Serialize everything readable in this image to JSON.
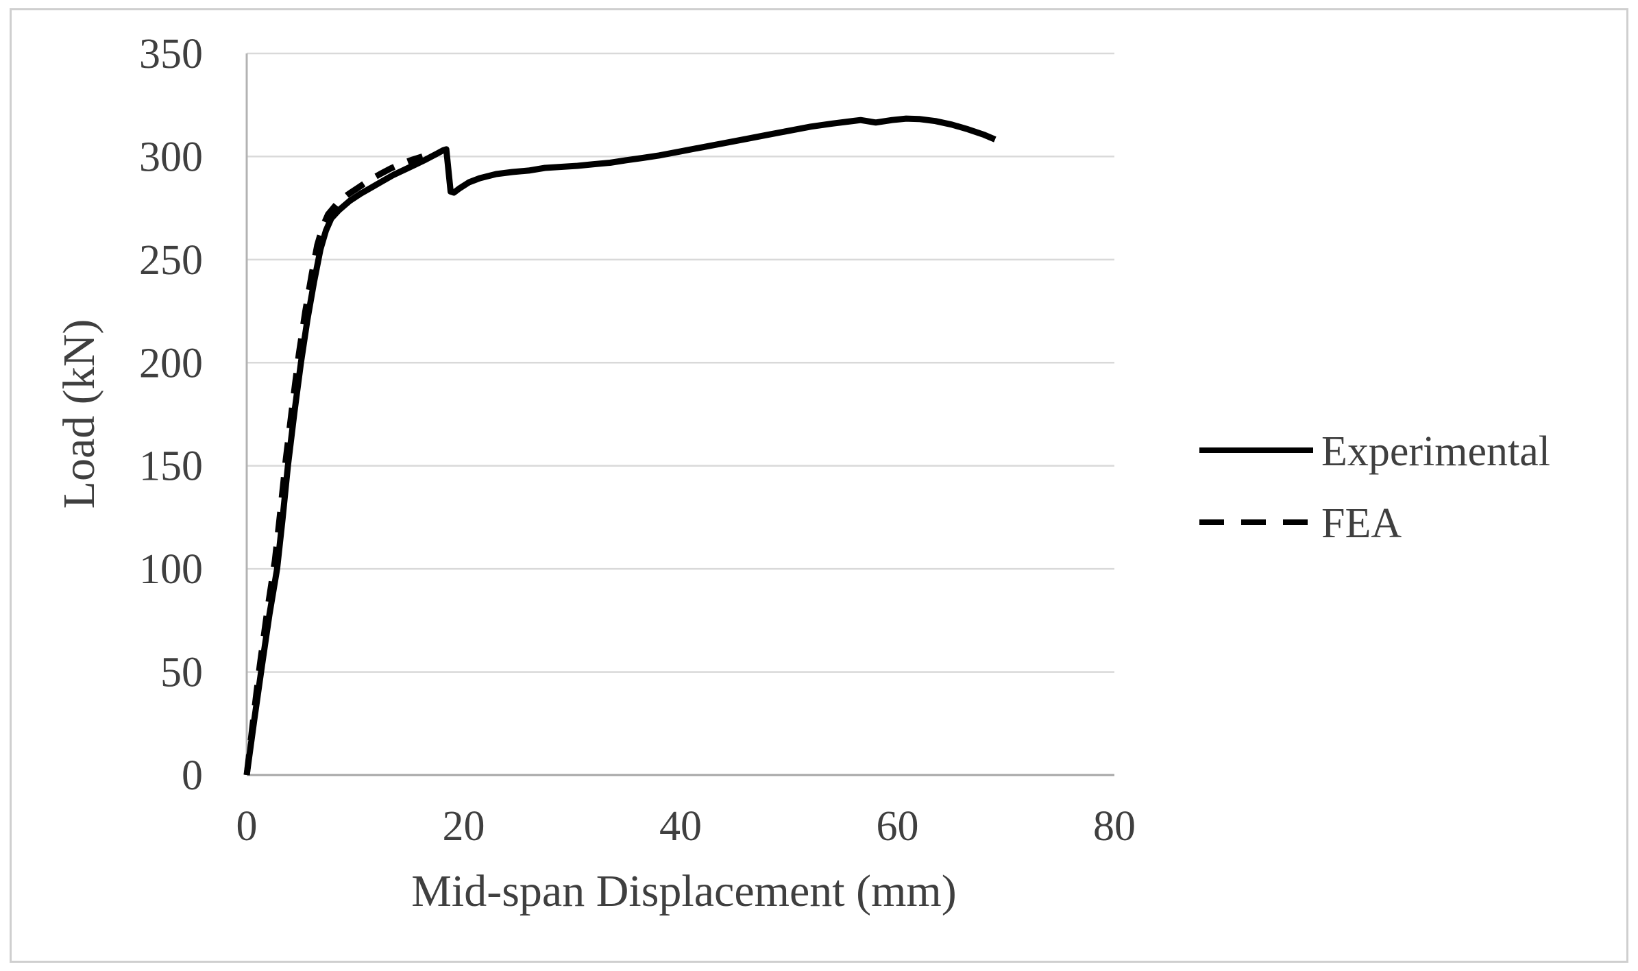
{
  "figure": {
    "background_color": "#ffffff",
    "frame_border_color": "#cfcfcf"
  },
  "chart_data": {
    "type": "line",
    "title": "",
    "xlabel": "Mid-span Displacement (mm)",
    "ylabel": "Load (kN)",
    "xlim": [
      0,
      80
    ],
    "ylim": [
      0,
      350
    ],
    "xticks": [
      0,
      20,
      40,
      60,
      80
    ],
    "yticks": [
      0,
      50,
      100,
      150,
      200,
      250,
      300,
      350
    ],
    "grid": "horizontal-only",
    "gridline_color": "#d9d9d9",
    "axis_line_color": "#a6a6a6",
    "tick_label_color": "#3f3f3f",
    "legend_position": "right-middle",
    "series": [
      {
        "name": "Experimental",
        "style": "solid",
        "color": "#000000",
        "width": 9,
        "points": [
          [
            0,
            0
          ],
          [
            0.7,
            27
          ],
          [
            1.4,
            53
          ],
          [
            2.1,
            78
          ],
          [
            2.8,
            100
          ],
          [
            3.3,
            124
          ],
          [
            3.8,
            150
          ],
          [
            4.4,
            176
          ],
          [
            5.0,
            200
          ],
          [
            5.6,
            221
          ],
          [
            6.2,
            239
          ],
          [
            6.8,
            255
          ],
          [
            7.3,
            264
          ],
          [
            7.8,
            270
          ],
          [
            8.5,
            274
          ],
          [
            9.5,
            278.5
          ],
          [
            10.5,
            282
          ],
          [
            11.5,
            285
          ],
          [
            12.5,
            288
          ],
          [
            13.5,
            291
          ],
          [
            14.5,
            293.5
          ],
          [
            15.5,
            296
          ],
          [
            16.5,
            298.5
          ],
          [
            17.4,
            301
          ],
          [
            18.1,
            303
          ],
          [
            18.4,
            303.5
          ],
          [
            18.8,
            283
          ],
          [
            19.1,
            282.5
          ],
          [
            19.6,
            284.5
          ],
          [
            20.5,
            287.5
          ],
          [
            21.5,
            289.5
          ],
          [
            23,
            291.5
          ],
          [
            24.5,
            292.5
          ],
          [
            26,
            293.2
          ],
          [
            27.5,
            294.5
          ],
          [
            29,
            295
          ],
          [
            30.5,
            295.5
          ],
          [
            32,
            296.3
          ],
          [
            33.5,
            297
          ],
          [
            35,
            298.2
          ],
          [
            36.5,
            299.3
          ],
          [
            38,
            300.5
          ],
          [
            40,
            302.5
          ],
          [
            42,
            304.5
          ],
          [
            44,
            306.5
          ],
          [
            46,
            308.5
          ],
          [
            48,
            310.5
          ],
          [
            50,
            312.5
          ],
          [
            52,
            314.5
          ],
          [
            54,
            316
          ],
          [
            56,
            317.3
          ],
          [
            56.6,
            317.7
          ],
          [
            58,
            316.5
          ],
          [
            59.5,
            317.7
          ],
          [
            60.8,
            318.4
          ],
          [
            62,
            318.2
          ],
          [
            63.5,
            317.2
          ],
          [
            65,
            315.5
          ],
          [
            66.5,
            313.2
          ],
          [
            68,
            310.5
          ],
          [
            69,
            308.3
          ]
        ]
      },
      {
        "name": "FEA",
        "style": "dashed",
        "color": "#000000",
        "width": 9,
        "dash": [
          30,
          21
        ],
        "points": [
          [
            0,
            0
          ],
          [
            0.6,
            27
          ],
          [
            1.2,
            53
          ],
          [
            1.9,
            80
          ],
          [
            2.6,
            104
          ],
          [
            3.1,
            128
          ],
          [
            3.6,
            153
          ],
          [
            4.2,
            179
          ],
          [
            4.8,
            204
          ],
          [
            5.4,
            225
          ],
          [
            6.0,
            243
          ],
          [
            6.5,
            257
          ],
          [
            7.0,
            266
          ],
          [
            7.5,
            272
          ],
          [
            8.3,
            277
          ],
          [
            9.3,
            281.5
          ],
          [
            10.3,
            285
          ],
          [
            11.3,
            288.5
          ],
          [
            12.3,
            291.5
          ],
          [
            13.3,
            294.3
          ],
          [
            14.3,
            296.6
          ],
          [
            15.3,
            298.5
          ],
          [
            16.2,
            300
          ]
        ]
      }
    ]
  }
}
